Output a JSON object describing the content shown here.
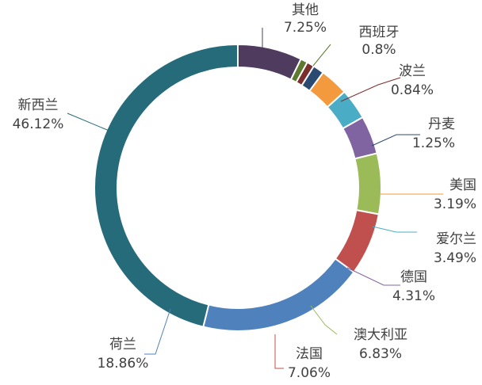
{
  "chart_data": {
    "type": "pie",
    "variant": "donut",
    "title": "",
    "slices": [
      {
        "name": "其他",
        "value": 7.25,
        "label": "7.25%",
        "color": "#4e3b5e"
      },
      {
        "name": "西班牙",
        "value": 0.8,
        "label": "0.8%",
        "color": "#5d7a2e"
      },
      {
        "name": "波兰",
        "value": 0.84,
        "label": "0.84%",
        "color": "#7a2e2e"
      },
      {
        "name": "丹麦",
        "value": 1.25,
        "label": "1.25%",
        "color": "#2b4a72"
      },
      {
        "name": "美国",
        "value": 3.19,
        "label": "3.19%",
        "color": "#f39a3e"
      },
      {
        "name": "爱尔兰",
        "value": 3.49,
        "label": "3.49%",
        "color": "#4bacc6"
      },
      {
        "name": "德国",
        "value": 4.31,
        "label": "4.31%",
        "color": "#8064a2"
      },
      {
        "name": "澳大利亚",
        "value": 6.83,
        "label": "6.83%",
        "color": "#9bbb59"
      },
      {
        "name": "法国",
        "value": 7.06,
        "label": "7.06%",
        "color": "#c0504d"
      },
      {
        "name": "荷兰",
        "value": 18.86,
        "label": "18.86%",
        "color": "#4f81bd"
      },
      {
        "name": "新西兰",
        "value": 46.12,
        "label": "46.12%",
        "color": "#256b7a"
      }
    ]
  }
}
